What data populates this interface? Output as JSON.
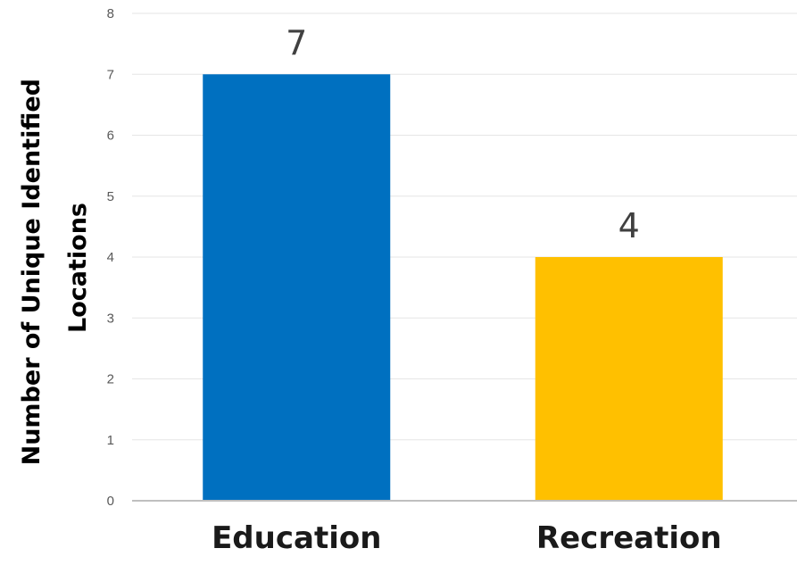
{
  "chart_data": {
    "type": "bar",
    "categories": [
      "Education",
      "Recreation"
    ],
    "values": [
      7,
      4
    ],
    "data_labels": [
      "7",
      "4"
    ],
    "colors": [
      "#0070c0",
      "#ffc000"
    ],
    "ylabel_lines": [
      "Number of Unique Identified",
      "Locations"
    ],
    "ylim": [
      0,
      8
    ],
    "yticks": [
      "0",
      "1",
      "2",
      "3",
      "4",
      "5",
      "6",
      "7",
      "8"
    ],
    "grid": true,
    "legend": "none"
  }
}
